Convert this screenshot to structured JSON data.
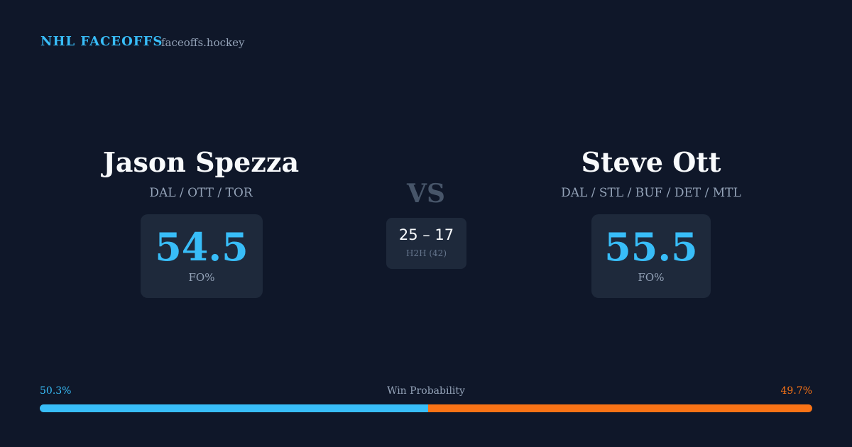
{
  "header": {
    "title": "NHL FACEOFFS",
    "site": "faceoffs.hockey"
  },
  "players": [
    {
      "name": "Jason Spezza",
      "teams": "DAL / OTT / TOR",
      "fo_pct": "54.5",
      "fo_label": "FO%"
    },
    {
      "name": "Steve Ott",
      "teams": "DAL / STL / BUF / DET / MTL",
      "fo_pct": "55.5",
      "fo_label": "FO%"
    }
  ],
  "versus": "VS",
  "head_to_head": {
    "record": "25 – 17",
    "label": "H2H (42)"
  },
  "win_probability": {
    "label": "Win Probability",
    "left": {
      "value": 50.3,
      "label": "50.3%",
      "color": "#38bdf8"
    },
    "right": {
      "value": 49.7,
      "label": "49.7%",
      "color": "#f97316"
    }
  }
}
